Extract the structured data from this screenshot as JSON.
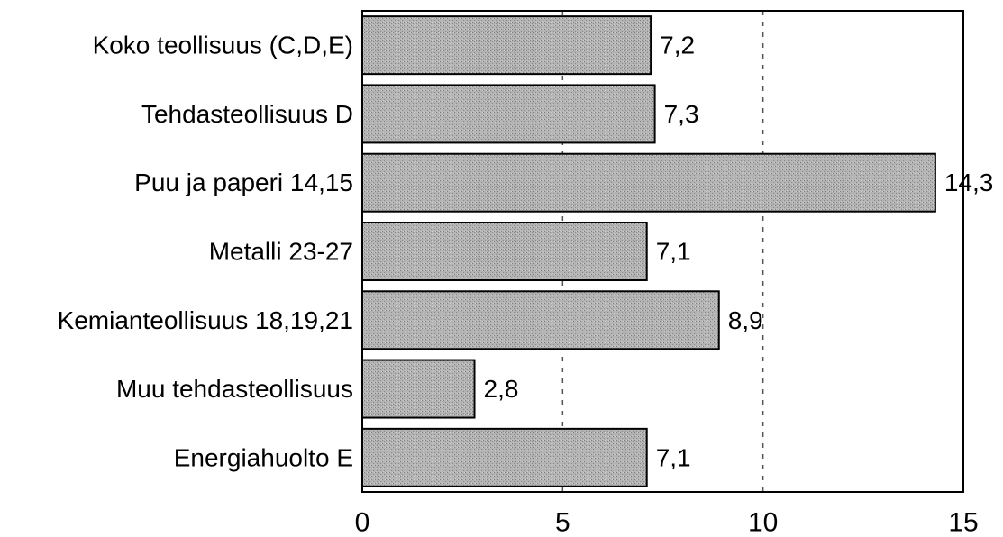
{
  "chart_data": {
    "type": "bar",
    "orientation": "horizontal",
    "categories": [
      "Koko teollisuus (C,D,E)",
      "Tehdasteollisuus D",
      "Puu ja paperi 14,15",
      "Metalli 23-27",
      "Kemianteollisuus 18,19,21",
      "Muu tehdasteollisuus",
      "Energiahuolto E"
    ],
    "values": [
      7.2,
      7.3,
      14.3,
      7.1,
      8.9,
      2.8,
      7.1
    ],
    "value_labels": [
      "7,2",
      "7,3",
      "14,3",
      "7,1",
      "8,9",
      "2,8",
      "7,1"
    ],
    "xlim": [
      0,
      15
    ],
    "x_ticks": [
      0,
      5,
      10,
      15
    ],
    "x_tick_labels": [
      "0",
      "5",
      "10",
      "15"
    ],
    "grid": "vertical dashed at 5 and 10",
    "title": "",
    "xlabel": "",
    "ylabel": "",
    "colors": {
      "bar_fill": "#a9a9a9",
      "bar_stroke": "#000000",
      "axis": "#000000",
      "grid": "#555555"
    }
  }
}
